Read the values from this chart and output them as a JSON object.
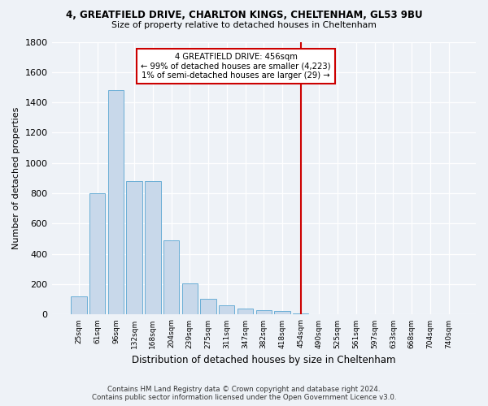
{
  "title": "4, GREATFIELD DRIVE, CHARLTON KINGS, CHELTENHAM, GL53 9BU",
  "subtitle": "Size of property relative to detached houses in Cheltenham",
  "xlabel": "Distribution of detached houses by size in Cheltenham",
  "ylabel": "Number of detached properties",
  "footer_line1": "Contains HM Land Registry data © Crown copyright and database right 2024.",
  "footer_line2": "Contains public sector information licensed under the Open Government Licence v3.0.",
  "bin_labels": [
    "25sqm",
    "61sqm",
    "96sqm",
    "132sqm",
    "168sqm",
    "204sqm",
    "239sqm",
    "275sqm",
    "311sqm",
    "347sqm",
    "382sqm",
    "418sqm",
    "454sqm",
    "490sqm",
    "525sqm",
    "561sqm",
    "597sqm",
    "633sqm",
    "668sqm",
    "704sqm",
    "740sqm"
  ],
  "bar_values": [
    120,
    800,
    1480,
    880,
    880,
    490,
    205,
    105,
    60,
    40,
    30,
    25,
    10,
    0,
    0,
    0,
    0,
    0,
    0,
    0,
    0
  ],
  "bar_color": "#c8d8ea",
  "bar_edge_color": "#6aaed6",
  "ylim": [
    0,
    1800
  ],
  "yticks": [
    0,
    200,
    400,
    600,
    800,
    1000,
    1200,
    1400,
    1600,
    1800
  ],
  "annotation_line1": "4 GREATFIELD DRIVE: 456sqm",
  "annotation_line2": "← 99% of detached houses are smaller (4,223)",
  "annotation_line3": "1% of semi-detached houses are larger (29) →",
  "vline_bin_index": 12,
  "vline_color": "#cc0000",
  "background_color": "#eef2f7",
  "grid_color": "#ffffff"
}
